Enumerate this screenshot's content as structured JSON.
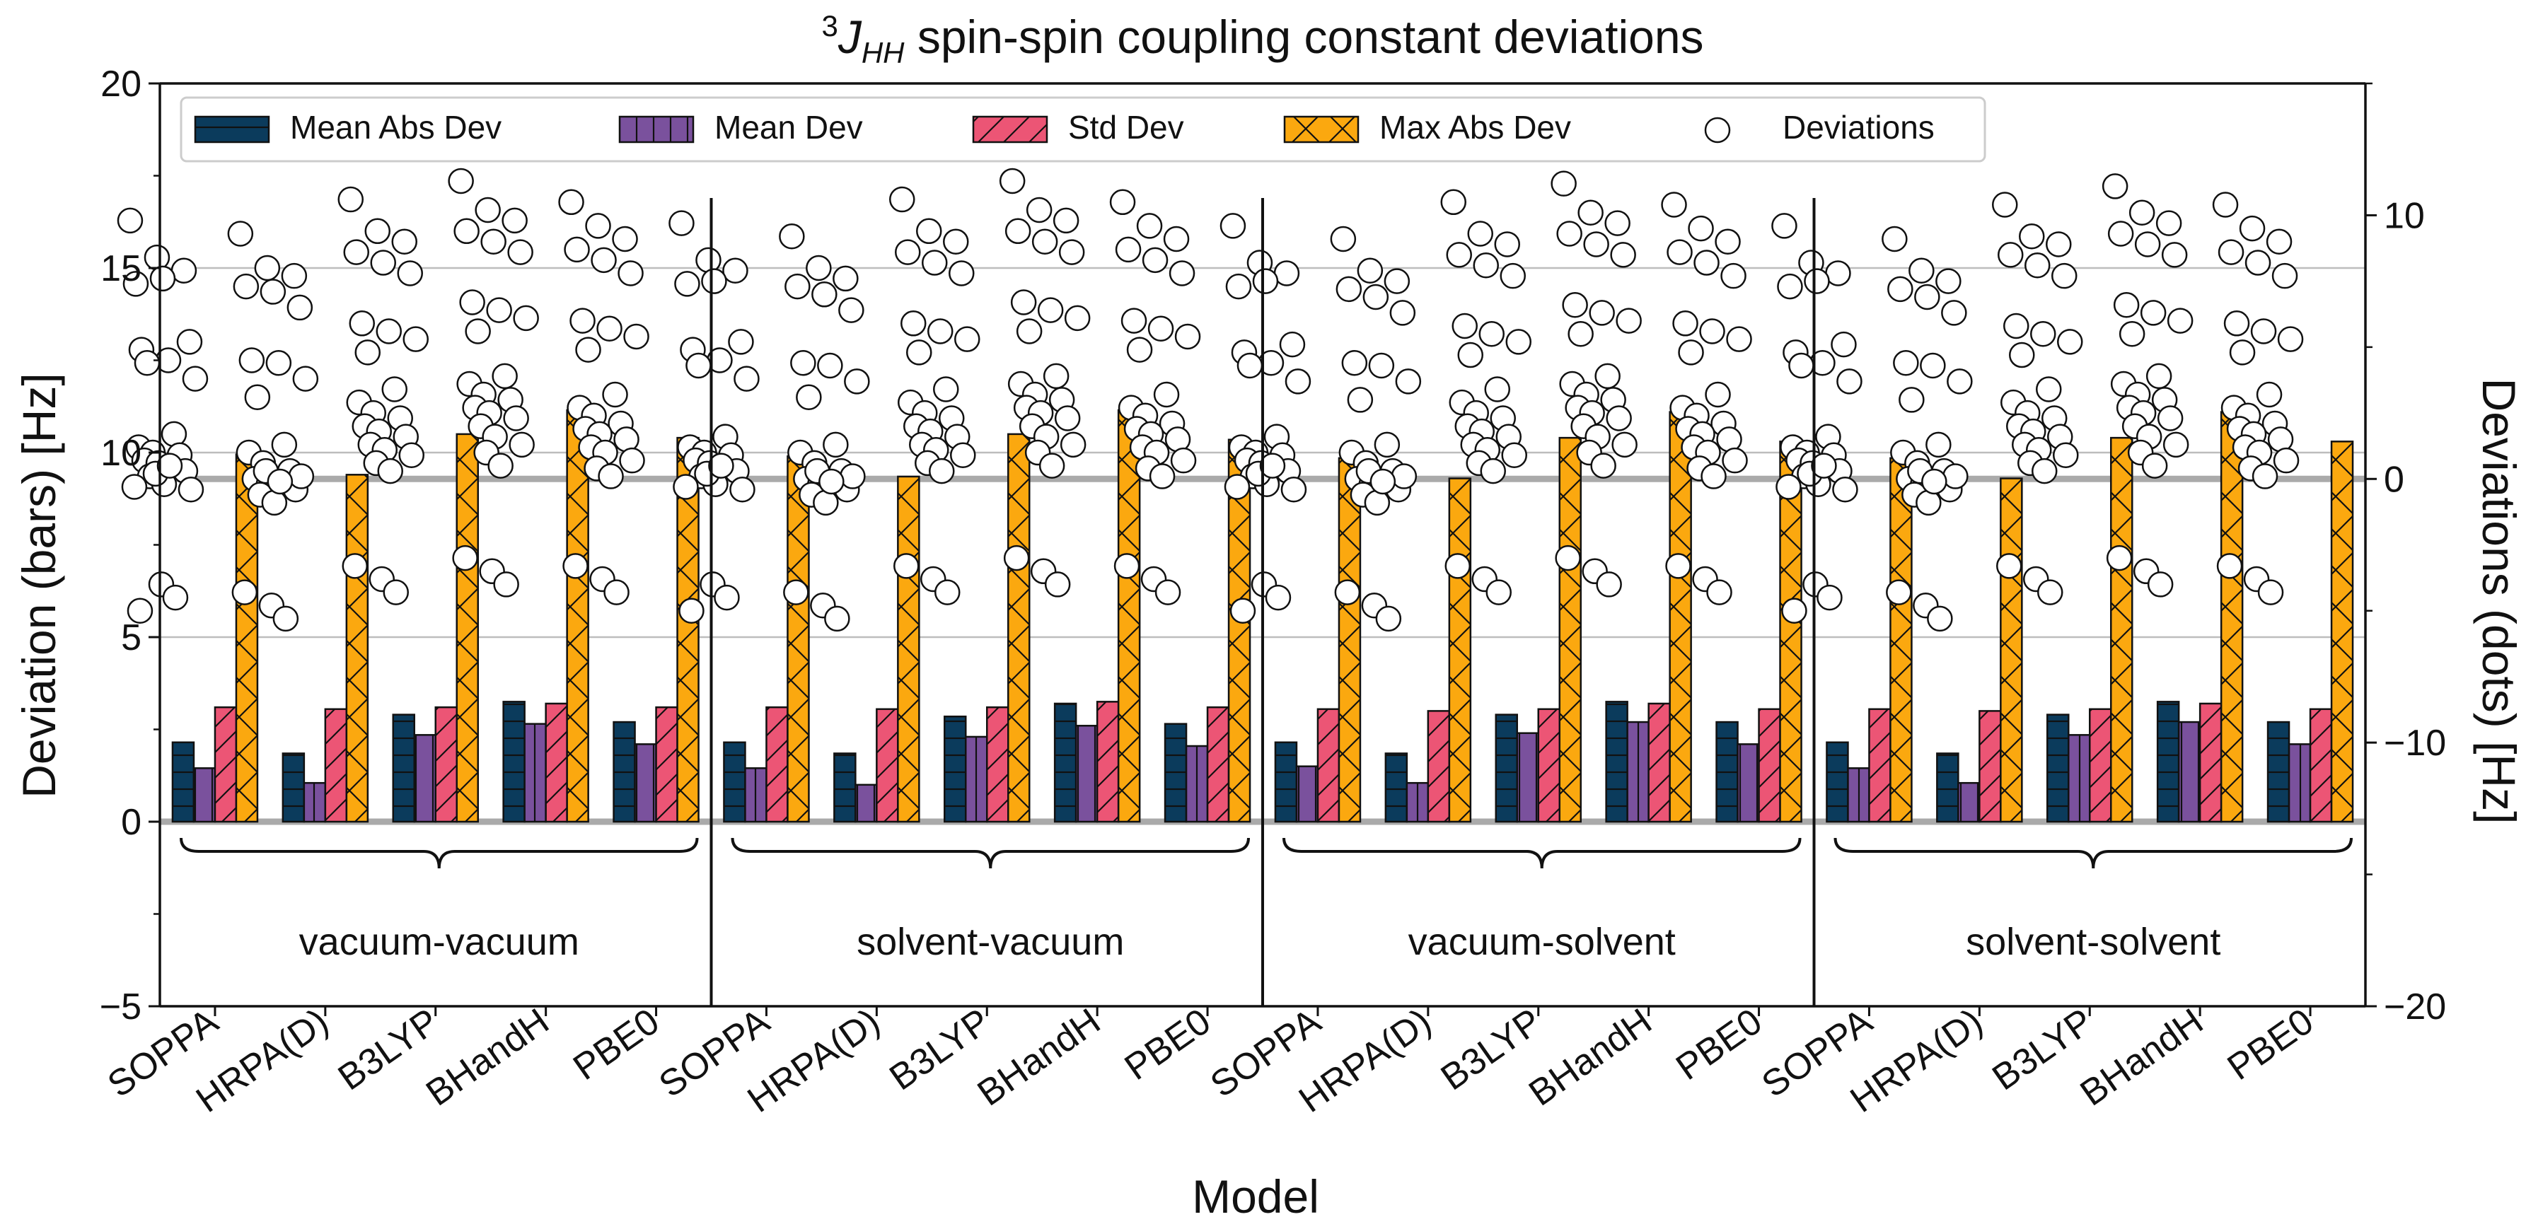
{
  "chart_data": {
    "type": "bar",
    "title_prefix_sup": "3",
    "title_J": "J",
    "title_sub": "HH",
    "title_rest": " spin-spin coupling constant deviations",
    "xlabel": "Model",
    "ylabel_left": "Deviation (bars) [Hz]",
    "ylabel_right": "Deviations (dots) [Hz]",
    "ylim_left": [
      -5,
      20
    ],
    "ylim_right": [
      -20,
      15
    ],
    "yticks_left": [
      -5,
      0,
      5,
      10,
      15,
      20
    ],
    "yticks_right": [
      -20,
      -10,
      0,
      10
    ],
    "grid": "horizontal",
    "legend_position": "top",
    "legend": [
      "Mean Abs Dev",
      "Mean Dev",
      "Std Dev",
      "Max Abs Dev",
      "Deviations"
    ],
    "colors": [
      "#0b3b5c",
      "#7a519d",
      "#ec5575",
      "#fba80f"
    ],
    "categories": [
      "SOPPA",
      "HRPA(D)",
      "B3LYP",
      "BHandH",
      "PBE0"
    ],
    "groups": [
      {
        "name": "vacuum-vacuum",
        "series": [
          {
            "name": "Mean Abs Dev",
            "values": [
              2.15,
              1.85,
              2.9,
              3.25,
              2.7
            ]
          },
          {
            "name": "Mean Dev",
            "values": [
              1.45,
              1.05,
              2.35,
              2.65,
              2.1
            ]
          },
          {
            "name": "Std Dev",
            "values": [
              3.1,
              3.05,
              3.1,
              3.2,
              3.1
            ]
          },
          {
            "name": "Max Abs Dev",
            "values": [
              9.95,
              9.4,
              10.5,
              11.15,
              10.4
            ]
          }
        ],
        "deviations": [
          [
            9.8,
            8.4,
            7.9,
            7.4,
            7.6,
            5.2,
            4.9,
            4.5,
            3.8,
            4.4,
            1.7,
            1.2,
            1.0,
            0.9,
            0.7,
            0.6,
            0.3,
            0.1,
            -0.2,
            -0.4,
            0.2,
            0.5,
            -0.3,
            -4.0,
            -4.5,
            -5.0
          ],
          [
            9.3,
            8.0,
            7.7,
            7.3,
            7.1,
            6.5,
            4.5,
            4.4,
            3.8,
            3.1,
            1.3,
            1.0,
            0.6,
            0.3,
            0.0,
            -0.2,
            -0.4,
            -0.6,
            -0.9,
            0.1,
            0.3,
            -0.1,
            -4.3,
            -4.8,
            -5.3
          ],
          [
            10.6,
            9.4,
            9.0,
            8.6,
            8.2,
            7.8,
            5.9,
            5.6,
            5.3,
            4.8,
            3.4,
            2.9,
            2.5,
            2.3,
            2.0,
            1.8,
            1.6,
            1.3,
            1.1,
            0.9,
            0.6,
            0.3,
            -3.3,
            -3.8,
            -4.3
          ],
          [
            11.3,
            10.2,
            9.8,
            9.4,
            9.0,
            8.6,
            6.7,
            6.4,
            6.1,
            5.6,
            3.9,
            3.6,
            3.2,
            3.0,
            2.7,
            2.5,
            2.3,
            2.0,
            1.6,
            1.3,
            1.0,
            0.5,
            -3.0,
            -3.5,
            -4.0
          ],
          [
            10.5,
            9.6,
            9.1,
            8.7,
            8.3,
            7.8,
            6.0,
            5.7,
            5.4,
            4.9,
            3.2,
            2.7,
            2.4,
            2.1,
            1.9,
            1.7,
            1.5,
            1.2,
            1.0,
            0.7,
            0.4,
            0.1,
            -3.3,
            -3.8,
            -4.3
          ]
        ]
      },
      {
        "name": "solvent-vacuum",
        "series": [
          {
            "name": "Mean Abs Dev",
            "values": [
              2.15,
              1.85,
              2.85,
              3.2,
              2.65
            ]
          },
          {
            "name": "Mean Dev",
            "values": [
              1.45,
              1.0,
              2.3,
              2.6,
              2.05
            ]
          },
          {
            "name": "Std Dev",
            "values": [
              3.1,
              3.05,
              3.1,
              3.25,
              3.1
            ]
          },
          {
            "name": "Max Abs Dev",
            "values": [
              9.9,
              9.35,
              10.5,
              11.15,
              10.35
            ]
          }
        ],
        "deviations": [
          [
            9.7,
            8.3,
            7.9,
            7.4,
            7.5,
            5.2,
            4.9,
            4.5,
            3.8,
            4.3,
            1.6,
            1.2,
            1.0,
            0.9,
            0.7,
            0.6,
            0.3,
            0.1,
            -0.2,
            -0.4,
            0.2,
            0.5,
            -0.3,
            -4.0,
            -4.5,
            -5.0
          ],
          [
            9.2,
            8.0,
            7.6,
            7.3,
            7.0,
            6.4,
            4.4,
            4.3,
            3.7,
            3.1,
            1.3,
            1.0,
            0.6,
            0.3,
            0.0,
            -0.2,
            -0.4,
            -0.6,
            -0.9,
            0.1,
            0.3,
            -0.1,
            -4.3,
            -4.8,
            -5.3
          ],
          [
            10.6,
            9.4,
            9.0,
            8.6,
            8.2,
            7.8,
            5.9,
            5.6,
            5.3,
            4.8,
            3.4,
            2.9,
            2.5,
            2.3,
            2.0,
            1.8,
            1.6,
            1.3,
            1.1,
            0.9,
            0.6,
            0.3,
            -3.3,
            -3.8,
            -4.3
          ],
          [
            11.3,
            10.2,
            9.8,
            9.4,
            9.0,
            8.6,
            6.7,
            6.4,
            6.1,
            5.6,
            3.9,
            3.6,
            3.2,
            3.0,
            2.7,
            2.5,
            2.3,
            2.0,
            1.6,
            1.3,
            1.0,
            0.5,
            -3.0,
            -3.5,
            -4.0
          ],
          [
            10.5,
            9.6,
            9.1,
            8.7,
            8.3,
            7.8,
            6.0,
            5.7,
            5.4,
            4.9,
            3.2,
            2.7,
            2.4,
            2.1,
            1.9,
            1.7,
            1.5,
            1.2,
            1.0,
            0.7,
            0.4,
            0.1,
            -3.3,
            -3.8,
            -4.3
          ]
        ]
      },
      {
        "name": "vacuum-solvent",
        "series": [
          {
            "name": "Mean Abs Dev",
            "values": [
              2.15,
              1.85,
              2.9,
              3.25,
              2.7
            ]
          },
          {
            "name": "Mean Dev",
            "values": [
              1.5,
              1.05,
              2.4,
              2.7,
              2.1
            ]
          },
          {
            "name": "Std Dev",
            "values": [
              3.05,
              3.0,
              3.05,
              3.2,
              3.05
            ]
          },
          {
            "name": "Max Abs Dev",
            "values": [
              9.85,
              9.3,
              10.4,
              11.1,
              10.3
            ]
          }
        ],
        "deviations": [
          [
            9.6,
            8.2,
            7.8,
            7.3,
            7.5,
            5.1,
            4.8,
            4.4,
            3.7,
            4.3,
            1.6,
            1.2,
            1.0,
            0.9,
            0.7,
            0.6,
            0.3,
            0.1,
            -0.2,
            -0.4,
            0.2,
            0.5,
            -0.3,
            -4.0,
            -4.5,
            -5.0
          ],
          [
            9.1,
            7.9,
            7.5,
            7.2,
            6.9,
            6.3,
            4.4,
            4.3,
            3.7,
            3.0,
            1.3,
            1.0,
            0.6,
            0.3,
            0.0,
            -0.2,
            -0.4,
            -0.6,
            -0.9,
            0.1,
            0.3,
            -0.1,
            -4.3,
            -4.8,
            -5.3
          ],
          [
            10.5,
            9.3,
            8.9,
            8.5,
            8.1,
            7.7,
            5.8,
            5.5,
            5.2,
            4.7,
            3.4,
            2.9,
            2.5,
            2.3,
            2.0,
            1.8,
            1.6,
            1.3,
            1.1,
            0.9,
            0.6,
            0.3,
            -3.3,
            -3.8,
            -4.3
          ],
          [
            11.2,
            10.1,
            9.7,
            9.3,
            8.9,
            8.5,
            6.6,
            6.3,
            6.0,
            5.5,
            3.9,
            3.6,
            3.2,
            3.0,
            2.7,
            2.5,
            2.3,
            2.0,
            1.6,
            1.3,
            1.0,
            0.5,
            -3.0,
            -3.5,
            -4.0
          ],
          [
            10.4,
            9.5,
            9.0,
            8.6,
            8.2,
            7.7,
            5.9,
            5.6,
            5.3,
            4.8,
            3.2,
            2.7,
            2.4,
            2.1,
            1.9,
            1.7,
            1.5,
            1.2,
            1.0,
            0.7,
            0.4,
            0.1,
            -3.3,
            -3.8,
            -4.3
          ]
        ]
      },
      {
        "name": "solvent-solvent",
        "series": [
          {
            "name": "Mean Abs Dev",
            "values": [
              2.15,
              1.85,
              2.9,
              3.25,
              2.7
            ]
          },
          {
            "name": "Mean Dev",
            "values": [
              1.45,
              1.05,
              2.35,
              2.7,
              2.1
            ]
          },
          {
            "name": "Std Dev",
            "values": [
              3.05,
              3.0,
              3.05,
              3.2,
              3.05
            ]
          },
          {
            "name": "Max Abs Dev",
            "values": [
              9.85,
              9.3,
              10.4,
              11.1,
              10.3
            ]
          }
        ],
        "deviations": [
          [
            9.6,
            8.2,
            7.8,
            7.3,
            7.5,
            5.1,
            4.8,
            4.4,
            3.7,
            4.3,
            1.6,
            1.2,
            1.0,
            0.9,
            0.7,
            0.6,
            0.3,
            0.1,
            -0.2,
            -0.4,
            0.2,
            0.5,
            -0.3,
            -4.0,
            -4.5,
            -5.0
          ],
          [
            9.1,
            7.9,
            7.5,
            7.2,
            6.9,
            6.3,
            4.4,
            4.3,
            3.7,
            3.0,
            1.3,
            1.0,
            0.6,
            0.3,
            0.0,
            -0.2,
            -0.4,
            -0.6,
            -0.9,
            0.1,
            0.3,
            -0.1,
            -4.3,
            -4.8,
            -5.3
          ],
          [
            10.4,
            9.2,
            8.9,
            8.5,
            8.1,
            7.7,
            5.8,
            5.5,
            5.2,
            4.7,
            3.4,
            2.9,
            2.5,
            2.3,
            2.0,
            1.8,
            1.6,
            1.3,
            1.1,
            0.9,
            0.6,
            0.3,
            -3.3,
            -3.8,
            -4.3
          ],
          [
            11.1,
            10.1,
            9.7,
            9.3,
            8.9,
            8.5,
            6.6,
            6.3,
            6.0,
            5.5,
            3.9,
            3.6,
            3.2,
            3.0,
            2.7,
            2.5,
            2.3,
            2.0,
            1.6,
            1.3,
            1.0,
            0.5,
            -3.0,
            -3.5,
            -4.0
          ],
          [
            10.4,
            9.5,
            9.0,
            8.6,
            8.2,
            7.7,
            5.9,
            5.6,
            5.3,
            4.8,
            3.2,
            2.7,
            2.4,
            2.1,
            1.9,
            1.7,
            1.5,
            1.2,
            1.0,
            0.7,
            0.4,
            0.1,
            -3.3,
            -3.8,
            -4.3
          ]
        ]
      }
    ]
  }
}
